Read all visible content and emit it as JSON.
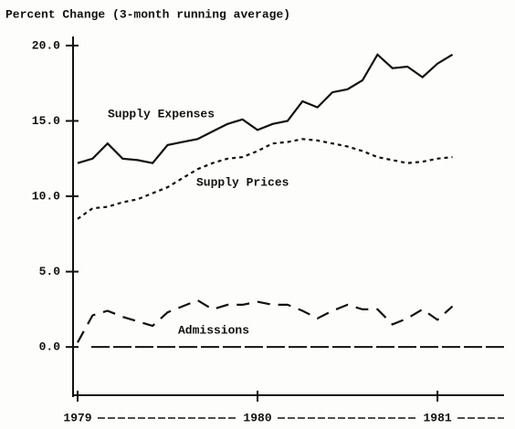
{
  "chart_data": {
    "type": "line",
    "title": "Percent Change (3-month running average)",
    "categories": [
      "1979",
      null,
      null,
      null,
      null,
      null,
      null,
      null,
      null,
      null,
      null,
      null,
      "1980",
      null,
      null,
      null,
      null,
      null,
      null,
      null,
      null,
      null,
      null,
      null,
      "1981",
      null
    ],
    "series": [
      {
        "name": "Supply Expenses",
        "color": "#111111",
        "style": "solid",
        "values": [
          12.2,
          12.5,
          13.5,
          12.5,
          12.4,
          12.2,
          13.4,
          13.6,
          13.8,
          14.3,
          14.8,
          15.1,
          14.4,
          14.8,
          15.0,
          16.3,
          15.9,
          16.9,
          17.1,
          17.7,
          19.4,
          18.5,
          18.6,
          17.9,
          18.8,
          19.4
        ]
      },
      {
        "name": "Supply Prices",
        "color": "#111111",
        "style": "dotted",
        "values": [
          8.5,
          9.2,
          9.3,
          9.6,
          9.8,
          10.2,
          10.6,
          11.2,
          11.8,
          12.2,
          12.5,
          12.6,
          13.0,
          13.5,
          13.6,
          13.8,
          13.7,
          13.5,
          13.3,
          13.0,
          12.6,
          12.4,
          12.2,
          12.3,
          12.5,
          12.6
        ]
      },
      {
        "name": "Admissions",
        "color": "#111111",
        "style": "dashed",
        "values": [
          0.3,
          2.1,
          2.4,
          2.0,
          1.7,
          1.4,
          2.3,
          2.7,
          3.1,
          2.5,
          2.8,
          2.8,
          3.0,
          2.8,
          2.8,
          2.4,
          1.9,
          2.4,
          2.8,
          2.5,
          2.5,
          1.5,
          1.9,
          2.5,
          1.8,
          2.7
        ]
      }
    ],
    "ylim": [
      -3.2,
      20.6
    ],
    "yticks": [
      {
        "value": 0,
        "label": "0.0"
      },
      {
        "value": 5,
        "label": "5.0"
      },
      {
        "value": 10,
        "label": "10.0"
      },
      {
        "value": 15,
        "label": "15.0"
      },
      {
        "value": 20,
        "label": "20.0"
      }
    ],
    "zero_line": true
  }
}
